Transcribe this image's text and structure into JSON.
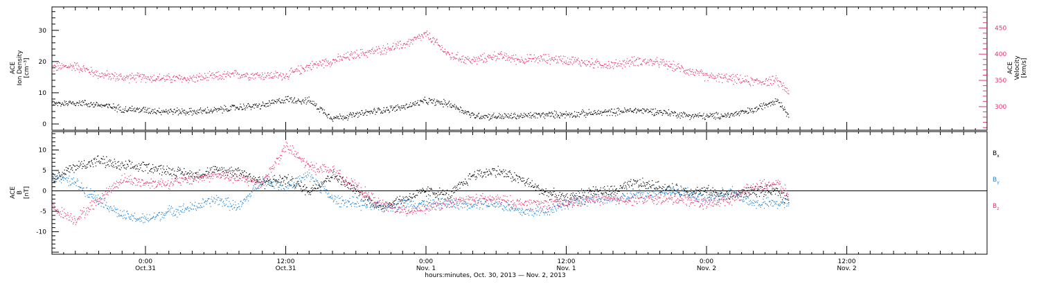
{
  "chart_data": [
    {
      "type": "scatter",
      "panel": "top",
      "ylabel_left": [
        "ACE",
        "Ion Density",
        "[cm⁻³]"
      ],
      "ylabel_right": [
        "ACE",
        "Velocity",
        "[km/s]"
      ],
      "left_ticks": [
        0,
        10,
        20,
        30
      ],
      "right_ticks": [
        300,
        350,
        400,
        450
      ],
      "ylim_left": [
        -2,
        37.5
      ],
      "ylim_right": [
        255,
        490
      ],
      "colors": {
        "density": "#000000",
        "velocity": "#e8336b"
      },
      "series": [
        {
          "axis": "left",
          "x_hours": [
            0,
            2,
            4,
            6,
            8,
            10,
            12,
            14,
            16,
            18,
            20,
            22,
            24,
            26,
            28,
            30,
            32,
            34,
            36,
            38,
            40,
            42,
            44,
            46,
            48,
            50,
            52,
            54,
            56,
            58,
            60,
            62,
            63
          ],
          "values": [
            6.5,
            7,
            6.2,
            5,
            4.5,
            4.2,
            4,
            4.5,
            5.5,
            6,
            8,
            7.5,
            2,
            3,
            4.5,
            5.5,
            7.5,
            6.5,
            2.8,
            2.5,
            2.6,
            3,
            3.2,
            3.5,
            4,
            4.5,
            4,
            3,
            2.5,
            3,
            4.5,
            8,
            3
          ]
        },
        {
          "axis": "right",
          "x_hours": [
            0,
            2,
            4,
            6,
            8,
            10,
            12,
            14,
            16,
            18,
            20,
            22,
            24,
            26,
            28,
            30,
            32,
            34,
            36,
            38,
            40,
            42,
            44,
            46,
            48,
            50,
            52,
            54,
            56,
            58,
            60,
            62,
            63
          ],
          "values": [
            375,
            378,
            362,
            356,
            356,
            354,
            354,
            358,
            362,
            360,
            360,
            378,
            388,
            400,
            408,
            418,
            438,
            398,
            388,
            398,
            390,
            392,
            390,
            383,
            380,
            388,
            384,
            372,
            358,
            354,
            348,
            350,
            330
          ]
        }
      ]
    },
    {
      "type": "scatter",
      "panel": "bottom",
      "ylabel": [
        "ACE",
        "B",
        "[nT]"
      ],
      "yticks": [
        10,
        5,
        0,
        -5,
        -10
      ],
      "ylim": [
        -15.5,
        14.5
      ],
      "zero_line": true,
      "xlim_hours": [
        0,
        80
      ],
      "xticks": [
        {
          "hour": 8,
          "time": "0:00",
          "date": "Oct.31"
        },
        {
          "hour": 20,
          "time": "12:00",
          "date": "Oct.31"
        },
        {
          "hour": 32,
          "time": "0:00",
          "date": "Nov. 1"
        },
        {
          "hour": 44,
          "time": "12:00",
          "date": "Nov. 1"
        },
        {
          "hour": 56,
          "time": "0:00",
          "date": "Nov. 2"
        },
        {
          "hour": 68,
          "time": "12:00",
          "date": "Nov. 2"
        }
      ],
      "xlabel": "hours:minutes, Oct. 30, 2013 — Nov.  2, 2013",
      "series": [
        {
          "name": "B",
          "sub": "x",
          "color": "#000000",
          "x_hours": [
            0,
            2,
            4,
            6,
            8,
            10,
            12,
            14,
            16,
            18,
            20,
            22,
            24,
            26,
            28,
            30,
            32,
            34,
            36,
            38,
            40,
            42,
            44,
            46,
            48,
            50,
            52,
            54,
            56,
            58,
            60,
            62,
            63
          ],
          "values": [
            3,
            6,
            7.5,
            6,
            6,
            5,
            4,
            5,
            5,
            2,
            3,
            0,
            4,
            0,
            -4,
            -2,
            0,
            -1,
            4,
            5,
            3,
            0,
            -2,
            0,
            0,
            2,
            1,
            0,
            0,
            -1,
            0,
            0,
            -2
          ]
        },
        {
          "name": "B",
          "sub": "y",
          "color": "#1f86d6",
          "x_hours": [
            0,
            2,
            4,
            6,
            8,
            10,
            12,
            14,
            16,
            18,
            20,
            22,
            24,
            26,
            28,
            30,
            32,
            34,
            36,
            38,
            40,
            42,
            44,
            46,
            48,
            50,
            52,
            54,
            56,
            58,
            60,
            62,
            63
          ],
          "values": [
            4,
            2,
            -2,
            -6,
            -7,
            -5,
            -4,
            -2,
            -4,
            3,
            1,
            4,
            -2,
            -3,
            -4,
            -3,
            -3,
            -3,
            -3,
            -3,
            -5,
            -5,
            -3,
            -2,
            -2,
            -1,
            0,
            0,
            -2,
            0,
            -3,
            -3,
            -3
          ]
        },
        {
          "name": "B",
          "sub": "z",
          "color": "#e8336b",
          "x_hours": [
            0,
            2,
            4,
            6,
            8,
            10,
            12,
            14,
            16,
            18,
            20,
            22,
            24,
            26,
            28,
            30,
            32,
            34,
            36,
            38,
            40,
            42,
            44,
            46,
            48,
            50,
            52,
            54,
            56,
            58,
            60,
            62,
            63
          ],
          "values": [
            -4,
            -7,
            -2,
            3,
            2,
            2,
            3,
            4,
            3,
            2,
            11,
            6,
            5,
            1,
            -3,
            -5,
            -4,
            -3,
            -2,
            -2,
            -3,
            -3,
            -3,
            -2,
            -2,
            -2,
            -2,
            -2,
            -3,
            -2,
            1,
            2,
            -1
          ]
        }
      ]
    }
  ]
}
